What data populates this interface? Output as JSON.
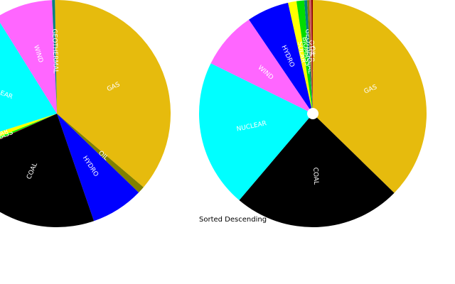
{
  "chart_data": [
    {
      "type": "pie",
      "categories": [
        "GAS",
        "OIL",
        "HYDRO",
        "COAL",
        "",
        "BIOMASS",
        "SOLAR",
        "NUCLEAR",
        "WIND",
        "GEOTHERMAL"
      ],
      "values": [
        36.5,
        1.0,
        7.5,
        23.5,
        0.2,
        0.5,
        1.2,
        21.0,
        8.2,
        0.4
      ],
      "colors": [
        "#e6bb0d",
        "#808000",
        "#0000ff",
        "#000000",
        "#8b0000",
        "#00ff00",
        "#ffff00",
        "#00ffff",
        "#ff66ff",
        "#008080"
      ],
      "label_fill": "#ffffff",
      "caption": ""
    },
    {
      "type": "pie",
      "categories": [
        "GAS",
        "COAL",
        "NUCLEAR",
        "WIND",
        "HYDRO",
        "SOLAR",
        "BIOMASS",
        "GEOTHERMAL",
        "",
        "OTHER",
        "OIL"
      ],
      "values": [
        37.3,
        23.9,
        21.1,
        8.2,
        6.0,
        1.2,
        1.1,
        0.4,
        0.3,
        0.3,
        0.2
      ],
      "colors": [
        "#e6bb0d",
        "#000000",
        "#00ffff",
        "#ff66ff",
        "#0000ff",
        "#ffff00",
        "#00dd00",
        "#008080",
        "#808000",
        "#cd5c5c",
        "#8b0000"
      ],
      "label_fill": "#ffffff",
      "caption": "Sorted Descending"
    }
  ]
}
